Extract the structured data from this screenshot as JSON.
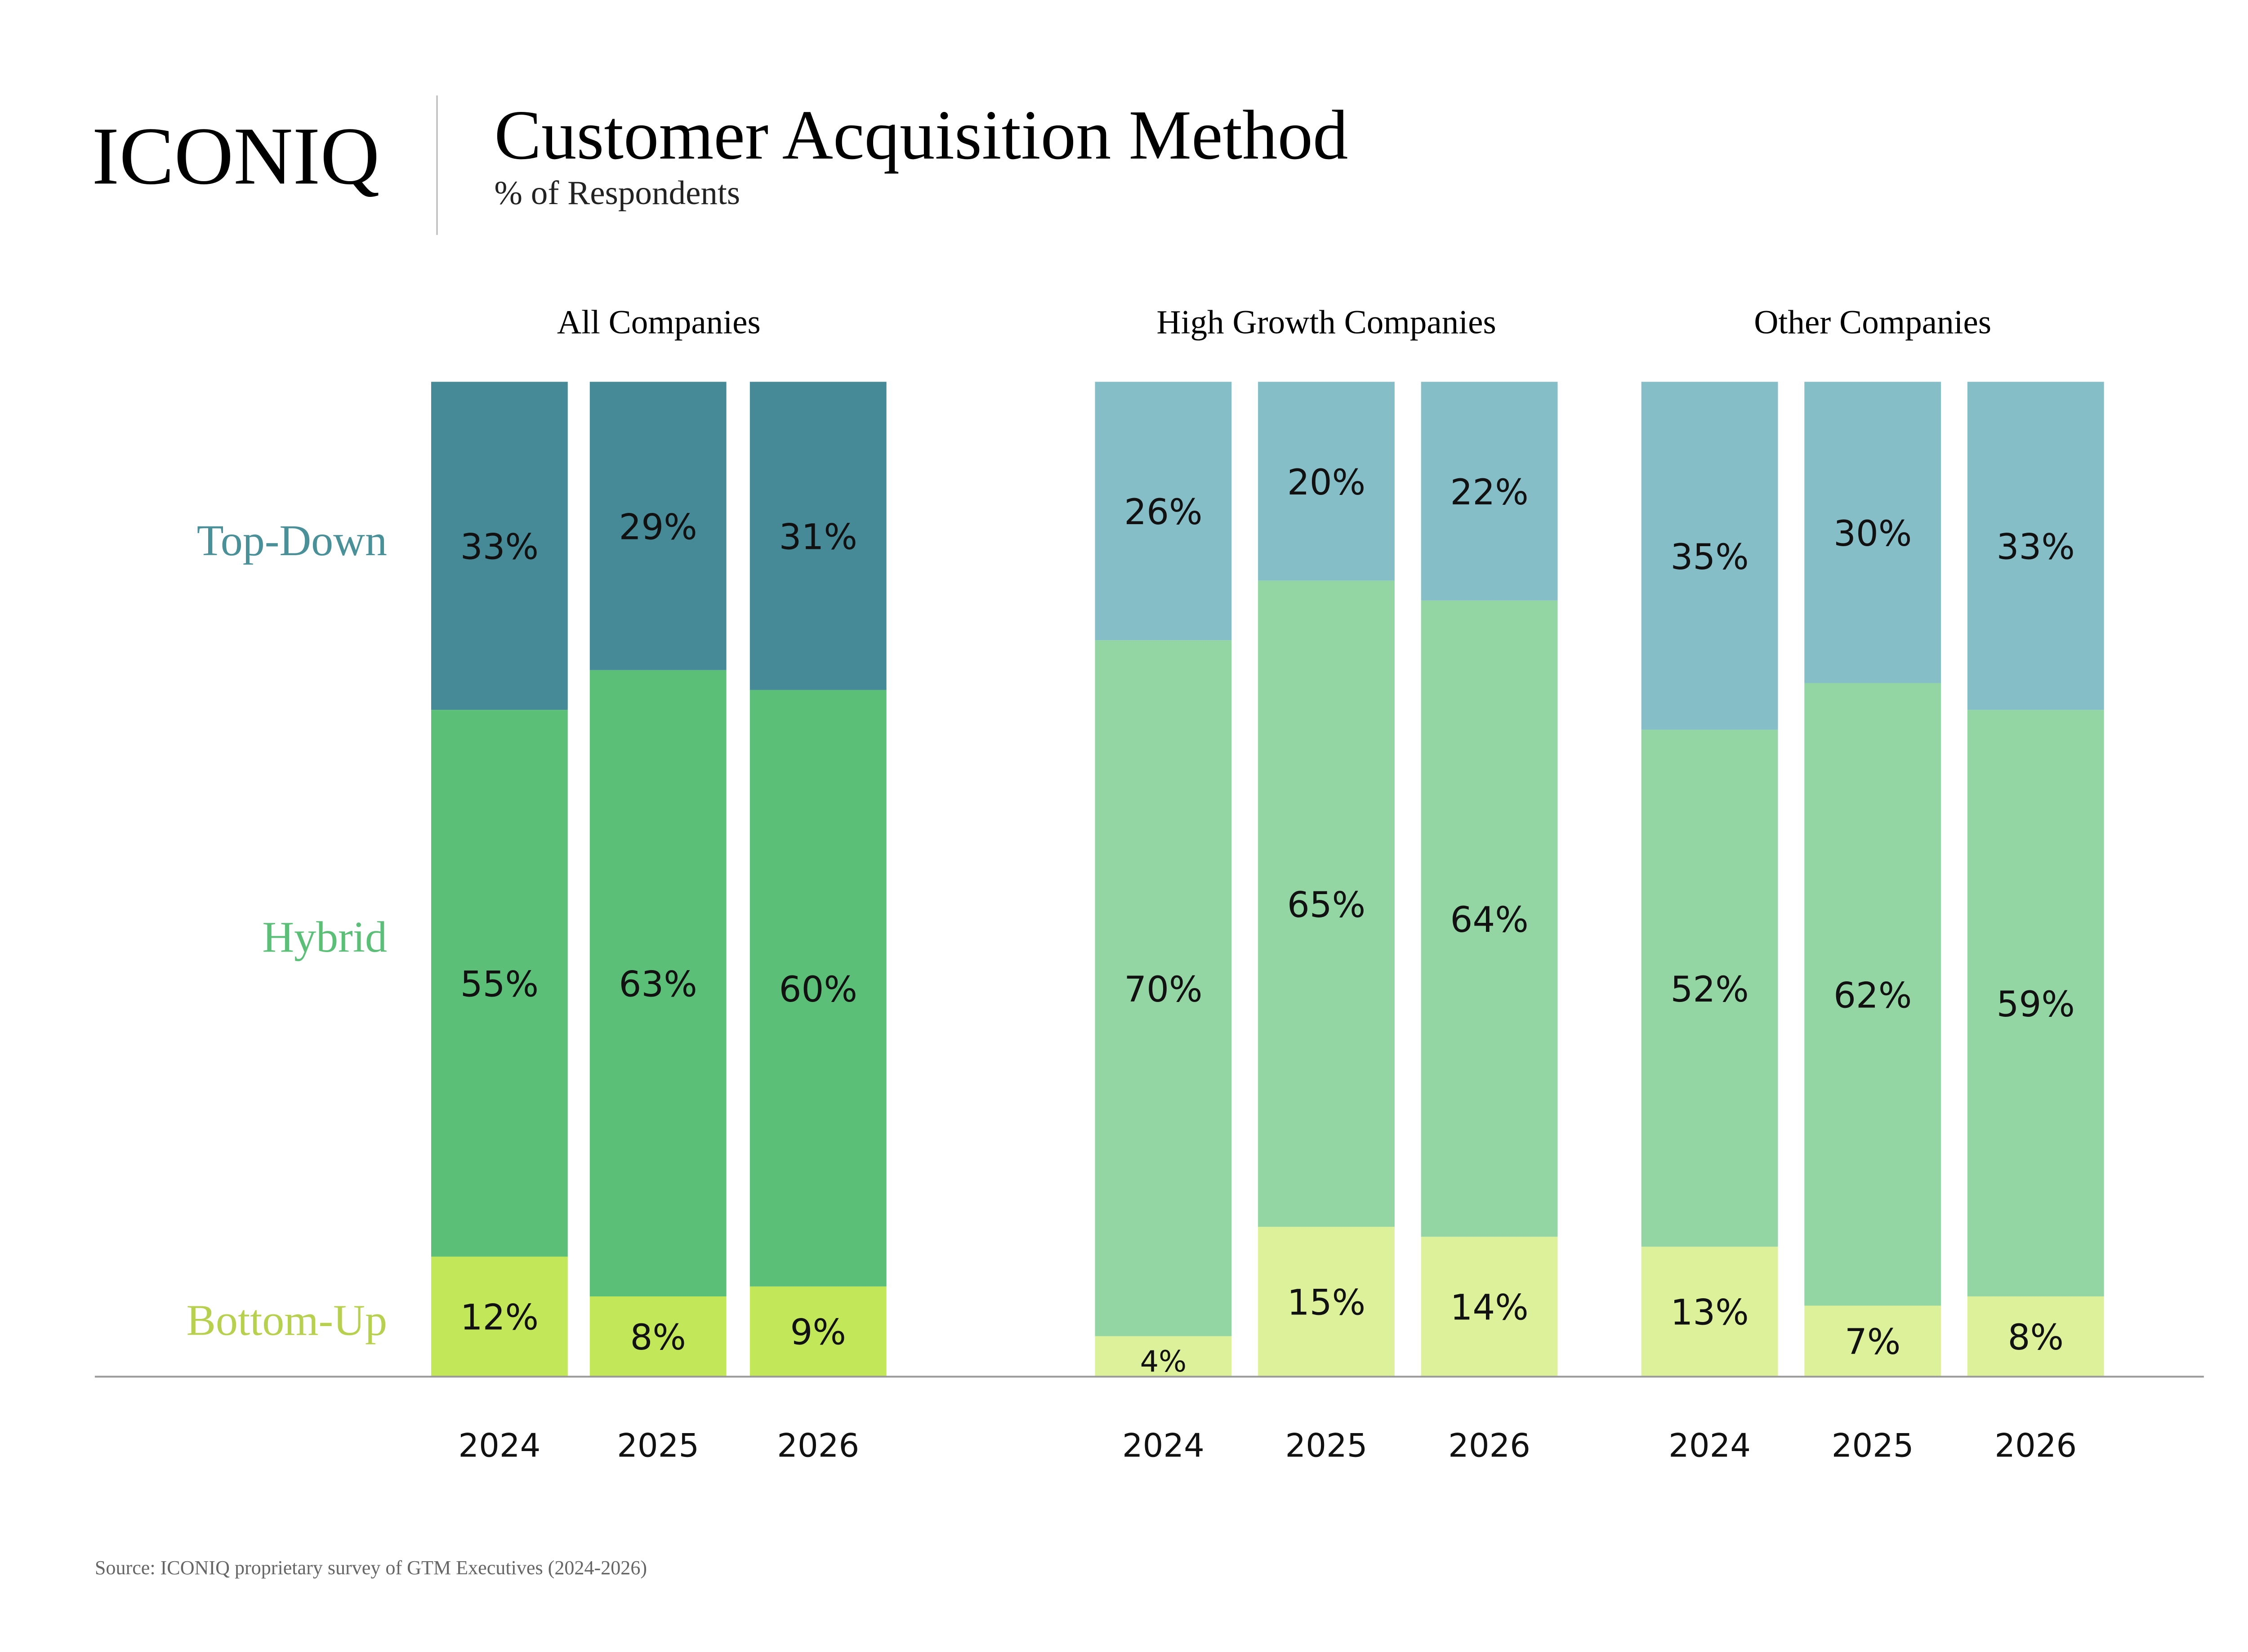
{
  "header": {
    "logo": "ICONIQ",
    "title": "Customer Acquisition Method",
    "subtitle": "% of Respondents"
  },
  "footer": {
    "source": "Source: ICONIQ proprietary survey of GTM Executives (2024-2026)"
  },
  "chart_data": {
    "type": "bar",
    "stacked": true,
    "value_unit": "%",
    "ylim": [
      0,
      100
    ],
    "grid": false,
    "legend_placement": "left",
    "segments_order_bottom_to_top": [
      "Bottom-Up",
      "Hybrid",
      "Top-Down"
    ],
    "series_labels": [
      {
        "name": "Top-Down",
        "color": "#4a9098"
      },
      {
        "name": "Hybrid",
        "color": "#5bbf78"
      },
      {
        "name": "Bottom-Up",
        "color": "#b8d050"
      }
    ],
    "groups": [
      {
        "title": "All Companies",
        "colors": {
          "Top-Down": "#458a96",
          "Hybrid": "#5bbf78",
          "Bottom-Up": "#c2e758"
        },
        "categories": [
          "2024",
          "2025",
          "2026"
        ],
        "series": [
          {
            "name": "Top-Down",
            "values": [
              33,
              29,
              31
            ]
          },
          {
            "name": "Hybrid",
            "values": [
              55,
              63,
              60
            ]
          },
          {
            "name": "Bottom-Up",
            "values": [
              12,
              8,
              9
            ]
          }
        ]
      },
      {
        "title": "High Growth Companies",
        "colors": {
          "Top-Down": "#86bec8",
          "Hybrid": "#93d6a4",
          "Bottom-Up": "#dcf19a"
        },
        "categories": [
          "2024",
          "2025",
          "2026"
        ],
        "series": [
          {
            "name": "Top-Down",
            "values": [
              26,
              20,
              22
            ]
          },
          {
            "name": "Hybrid",
            "values": [
              70,
              65,
              64
            ]
          },
          {
            "name": "Bottom-Up",
            "values": [
              4,
              15,
              14
            ]
          }
        ]
      },
      {
        "title": "Other Companies",
        "colors": {
          "Top-Down": "#86bec8",
          "Hybrid": "#93d6a4",
          "Bottom-Up": "#dcf19a"
        },
        "categories": [
          "2024",
          "2025",
          "2026"
        ],
        "series": [
          {
            "name": "Top-Down",
            "values": [
              35,
              30,
              33
            ]
          },
          {
            "name": "Hybrid",
            "values": [
              52,
              62,
              59
            ]
          },
          {
            "name": "Bottom-Up",
            "values": [
              13,
              7,
              8
            ]
          }
        ]
      }
    ]
  }
}
